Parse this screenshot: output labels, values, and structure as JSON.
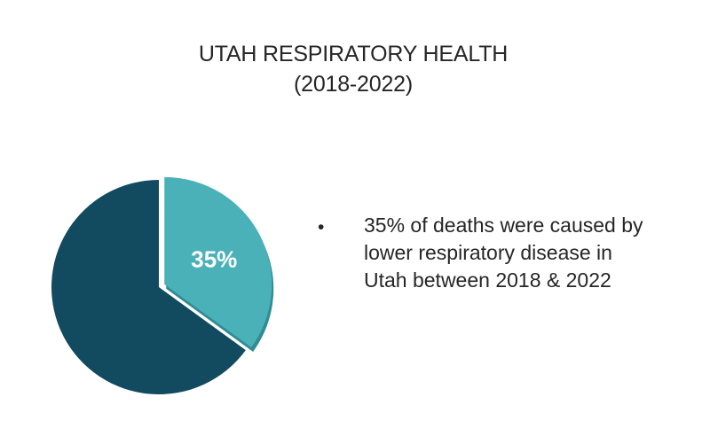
{
  "title": {
    "line1": "UTAH RESPIRATORY HEALTH",
    "line2": "(2018-2022)"
  },
  "bullet": {
    "marker": "•",
    "text": "35% of deaths were caused by lower respiratory disease in Utah between 2018 & 2022"
  },
  "colors": {
    "highlight_slice": "#4bb1b9",
    "highlight_slice_edge": "#2f8d93",
    "remaining_slice": "#124b5f",
    "slice_label": "#ffffff"
  },
  "chart_data": {
    "type": "pie",
    "slices": [
      {
        "value": 35,
        "label": "35%",
        "color": "#4bb1b9",
        "exploded": true
      },
      {
        "value": 65,
        "label": "",
        "color": "#124b5f",
        "exploded": false
      }
    ]
  }
}
